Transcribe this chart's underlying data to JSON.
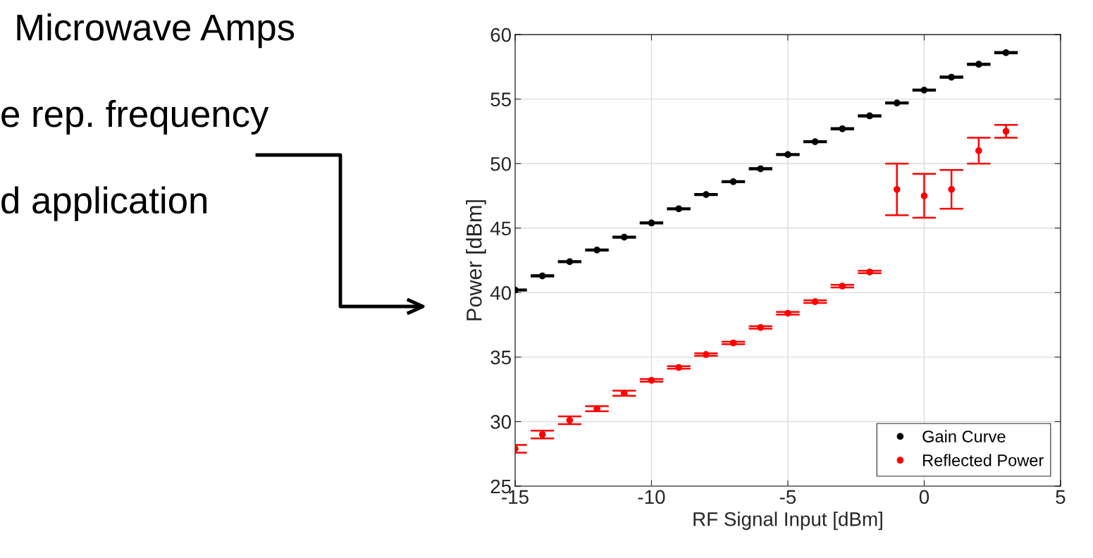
{
  "chart_data": {
    "type": "scatter",
    "xlabel": "RF Signal Input [dBm]",
    "ylabel": "Power [dBm]",
    "annotations": [
      "Microwave Amps",
      "e rep. frequency",
      "d application"
    ],
    "x": [
      -15,
      -14,
      -13,
      -12,
      -11,
      -10,
      -9,
      -8,
      -7,
      -6,
      -5,
      -4,
      -3,
      -2,
      -1,
      0,
      1,
      2,
      3
    ],
    "series": [
      {
        "name": "Gain Curve",
        "color": "#000000",
        "values": [
          40.2,
          41.3,
          42.4,
          43.3,
          44.3,
          45.4,
          46.5,
          47.6,
          48.6,
          49.6,
          50.7,
          51.7,
          52.7,
          53.7,
          54.7,
          55.7,
          56.7,
          57.7,
          58.6
        ],
        "errors": [
          0.05,
          0.05,
          0.05,
          0.05,
          0.05,
          0.05,
          0.05,
          0.05,
          0.05,
          0.05,
          0.05,
          0.05,
          0.05,
          0.05,
          0.05,
          0.05,
          0.05,
          0.05,
          0.05
        ]
      },
      {
        "name": "Reflected Power",
        "color": "#ff0000",
        "values": [
          27.9,
          29.0,
          30.1,
          31.0,
          32.2,
          33.2,
          34.2,
          35.2,
          36.1,
          37.3,
          38.4,
          39.3,
          40.5,
          41.6,
          48.0,
          47.5,
          48.0,
          51.0,
          52.5
        ],
        "errors": [
          0.3,
          0.3,
          0.3,
          0.2,
          0.2,
          0.1,
          0.1,
          0.1,
          0.1,
          0.1,
          0.1,
          0.1,
          0.1,
          0.1,
          [
            46.0,
            50.0
          ],
          [
            45.8,
            49.2
          ],
          [
            46.5,
            49.5
          ],
          [
            50.0,
            52.0
          ],
          [
            52.0,
            53.0
          ]
        ]
      }
    ],
    "xlim": [
      -15,
      5
    ],
    "xticks": [
      -15,
      -10,
      -5,
      0,
      5
    ],
    "ylim": [
      25,
      60
    ],
    "yticks": [
      25,
      30,
      35,
      40,
      45,
      50,
      55,
      60
    ],
    "grid": true,
    "legend": "bottom right",
    "marker": "circle"
  }
}
